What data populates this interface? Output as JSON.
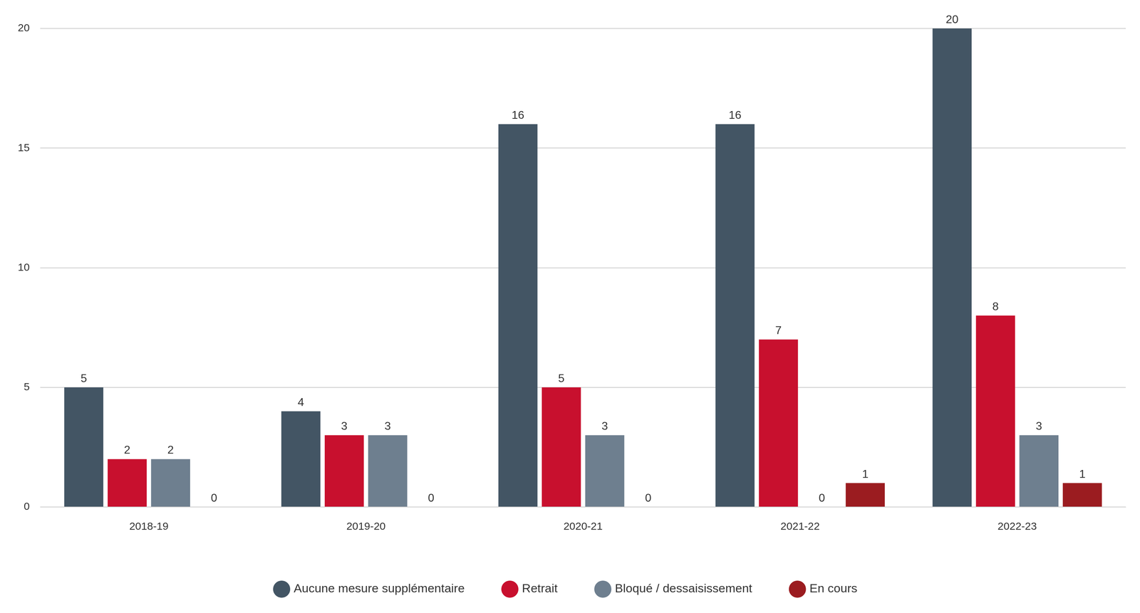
{
  "chart_data": {
    "type": "bar",
    "categories": [
      "2018-19",
      "2019-20",
      "2020-21",
      "2021-22",
      "2022-23"
    ],
    "series": [
      {
        "name": "Aucune mesure supplémentaire",
        "color": "#435564",
        "values": [
          5,
          4,
          16,
          16,
          20
        ]
      },
      {
        "name": "Retrait",
        "color": "#c8102e",
        "values": [
          2,
          3,
          5,
          7,
          8
        ]
      },
      {
        "name": "Bloqué / dessaisissement",
        "color": "#6e7f8f",
        "values": [
          2,
          3,
          3,
          0,
          3
        ]
      },
      {
        "name": "En cours",
        "color": "#9b1c20",
        "values": [
          0,
          0,
          0,
          1,
          1
        ]
      }
    ],
    "ylim": [
      0,
      20
    ],
    "yticks": [
      0,
      5,
      10,
      15,
      20
    ],
    "grid": true,
    "legend": "bottom",
    "data_labels": true
  }
}
